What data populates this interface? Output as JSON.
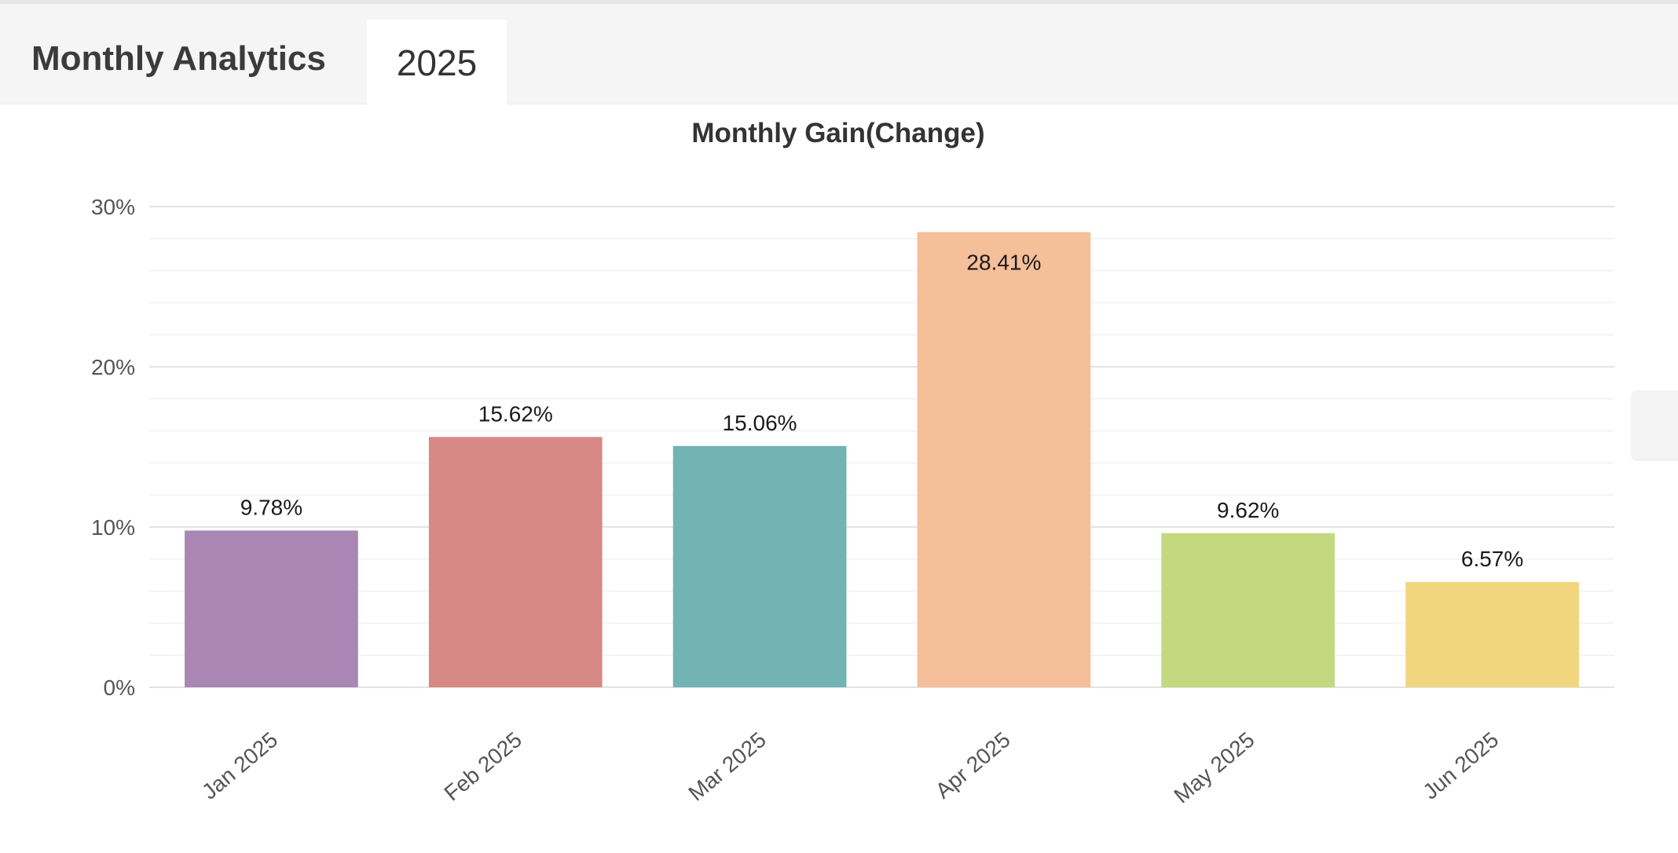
{
  "header": {
    "title": "Monthly Analytics",
    "year_tab": "2025"
  },
  "chart_data": {
    "type": "bar",
    "title": "Monthly Gain(Change)",
    "xlabel": "",
    "ylabel": "",
    "categories": [
      "Jan 2025",
      "Feb 2025",
      "Mar 2025",
      "Apr 2025",
      "May 2025",
      "Jun 2025"
    ],
    "values": [
      9.78,
      15.62,
      15.06,
      28.41,
      9.62,
      6.57
    ],
    "value_labels": [
      "9.78%",
      "15.62%",
      "15.06%",
      "28.41%",
      "9.62%",
      "6.57%"
    ],
    "colors": [
      "#a986b4",
      "#d68985",
      "#72b3b4",
      "#f5bf9a",
      "#c3d87f",
      "#f2d67f"
    ],
    "ylim": [
      0,
      30
    ],
    "yticks": [
      0,
      10,
      20,
      30
    ],
    "ytick_labels": [
      "0%",
      "10%",
      "20%",
      "30%"
    ],
    "grid": true,
    "legend": "none"
  }
}
